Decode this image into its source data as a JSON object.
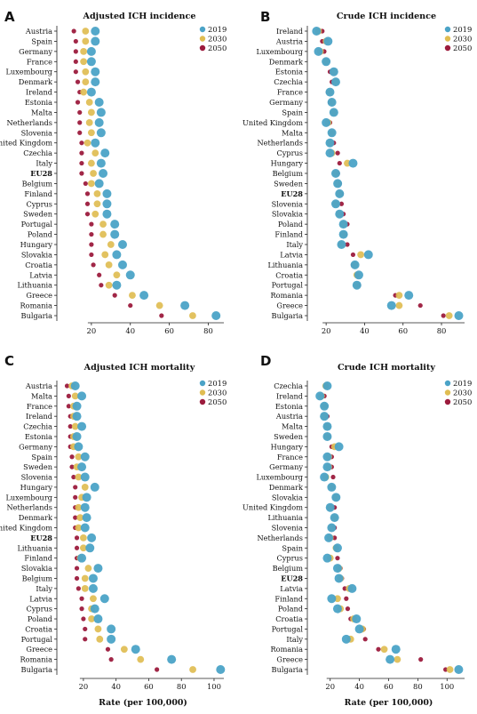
{
  "colors": {
    "2019": "#4ba3c7",
    "2030": "#e0bd52",
    "2050": "#9c1b3d"
  },
  "legend": [
    "2019",
    "2030",
    "2050"
  ],
  "bold_category": "EU28",
  "chart_data": [
    {
      "letter": "A",
      "type": "scatter",
      "title": "Adjusted ICH incidence",
      "xlabel": "",
      "xlim": [
        5,
        88
      ],
      "xticks": [
        20,
        40,
        60,
        80
      ],
      "categories": [
        "Austria",
        "Spain",
        "Germany",
        "France",
        "Luxembourg",
        "Denmark",
        "Ireland",
        "Estonia",
        "Malta",
        "Netherlands",
        "Slovenia",
        "United Kingdom",
        "Czechia",
        "Italy",
        "EU28",
        "Belgium",
        "Finland",
        "Cyprus",
        "Sweden",
        "Portugal",
        "Poland",
        "Hungary",
        "Slovakia",
        "Croatia",
        "Latvia",
        "Lithuania",
        "Greece",
        "Romania",
        "Bulgaria"
      ],
      "series": [
        {
          "name": "2019",
          "values": [
            22,
            22,
            20,
            20,
            22,
            22,
            20,
            24,
            25,
            24,
            25,
            22,
            27,
            25,
            26,
            24,
            28,
            28,
            28,
            32,
            32,
            36,
            33,
            36,
            40,
            33,
            47,
            68,
            84
          ]
        },
        {
          "name": "2030",
          "values": [
            17,
            17,
            16,
            16,
            17,
            17,
            16,
            19,
            20,
            19,
            20,
            18,
            22,
            20,
            21,
            20,
            23,
            23,
            22,
            26,
            26,
            30,
            27,
            29,
            33,
            29,
            41,
            55,
            72
          ]
        },
        {
          "name": "2050",
          "values": [
            11,
            12,
            12,
            12,
            12,
            13,
            14,
            13,
            14,
            14,
            14,
            15,
            15,
            15,
            15,
            17,
            18,
            18,
            18,
            20,
            20,
            20,
            20,
            21,
            24,
            25,
            32,
            40,
            56
          ]
        }
      ]
    },
    {
      "letter": "B",
      "type": "scatter",
      "title": "Crude ICH incidence",
      "xlabel": "",
      "xlim": [
        13,
        92
      ],
      "xticks": [
        20,
        40,
        60,
        80
      ],
      "categories": [
        "Ireland",
        "Austria",
        "Luxembourg",
        "Denmark",
        "Estonia",
        "Czechia",
        "France",
        "Germany",
        "Spain",
        "United Kingdom",
        "Malta",
        "Netherlands",
        "Cyprus",
        "Hungary",
        "Belgium",
        "Sweden",
        "EU28",
        "Slovenia",
        "Slovakia",
        "Poland",
        "Finland",
        "Italy",
        "Latvia",
        "Lithuania",
        "Croatia",
        "Portugal",
        "Romania",
        "Greece",
        "Bulgaria"
      ],
      "series": [
        {
          "name": "2019",
          "values": [
            15,
            21,
            16,
            20,
            24,
            25,
            22,
            23,
            24,
            20,
            23,
            22,
            22,
            34,
            25,
            26,
            27,
            25,
            27,
            29,
            29,
            28,
            42,
            35,
            37,
            36,
            63,
            54,
            89
          ]
        },
        {
          "name": "2030",
          "values": [
            16,
            20,
            17,
            20,
            24,
            25,
            22,
            23,
            24,
            21,
            23,
            22,
            23,
            31,
            25,
            26,
            27,
            25,
            27,
            29,
            29,
            28,
            38,
            35,
            36,
            36,
            58,
            58,
            84
          ]
        },
        {
          "name": "2050",
          "values": [
            18,
            18,
            19,
            20,
            22,
            23,
            21,
            22,
            24,
            22,
            23,
            24,
            26,
            27,
            26,
            27,
            28,
            28,
            29,
            31,
            30,
            31,
            34,
            34,
            36,
            37,
            56,
            69,
            81
          ]
        }
      ]
    },
    {
      "letter": "C",
      "type": "scatter",
      "title": "Adjusted ICH mortality",
      "xlabel": "Rate (per 100,000)",
      "xlim": [
        7,
        106
      ],
      "xticks": [
        20,
        40,
        60,
        80,
        100
      ],
      "categories": [
        "Austria",
        "Malta",
        "France",
        "Ireland",
        "Czechia",
        "Estonia",
        "Germany",
        "Spain",
        "Sweden",
        "Slovenia",
        "Hungary",
        "Luxembourg",
        "Netherlands",
        "Denmark",
        "United Kingdom",
        "EU28",
        "Lithuania",
        "Finland",
        "Slovakia",
        "Belgium",
        "Italy",
        "Latvia",
        "Cyprus",
        "Poland",
        "Croatia",
        "Portugal",
        "Greece",
        "Romania",
        "Bulgaria"
      ],
      "series": [
        {
          "name": "2019",
          "values": [
            15,
            19,
            16,
            16,
            19,
            16,
            17,
            21,
            19,
            21,
            27,
            22,
            21,
            22,
            21,
            25,
            24,
            19,
            29,
            26,
            26,
            33,
            27,
            29,
            37,
            37,
            52,
            74,
            104
          ]
        },
        {
          "name": "2030",
          "values": [
            13,
            15,
            14,
            14,
            15,
            14,
            14,
            17,
            16,
            17,
            21,
            19,
            17,
            18,
            17,
            20,
            20,
            18,
            23,
            21,
            21,
            26,
            25,
            25,
            29,
            30,
            45,
            55,
            87
          ]
        },
        {
          "name": "2050",
          "values": [
            10,
            11,
            11,
            12,
            12,
            12,
            12,
            13,
            13,
            14,
            15,
            15,
            15,
            15,
            15,
            16,
            16,
            16,
            16,
            16,
            17,
            19,
            19,
            20,
            21,
            21,
            35,
            37,
            65
          ]
        }
      ]
    },
    {
      "letter": "D",
      "type": "scatter",
      "title": "Crude ICH mortality",
      "xlabel": "Rate (per 100,000)",
      "xlim": [
        8,
        112
      ],
      "xticks": [
        20,
        40,
        60,
        80,
        100
      ],
      "categories": [
        "Czechia",
        "Ireland",
        "Estonia",
        "Austria",
        "Malta",
        "Sweden",
        "Hungary",
        "France",
        "Germany",
        "Luxembourg",
        "Denmark",
        "Slovakia",
        "United Kingdom",
        "Lithuania",
        "Slovenia",
        "Netherlands",
        "Spain",
        "Cyprus",
        "Belgium",
        "EU28",
        "Latvia",
        "Finland",
        "Poland",
        "Croatia",
        "Portugal",
        "Italy",
        "Romania",
        "Greece",
        "Bulgaria"
      ],
      "series": [
        {
          "name": "2019",
          "values": [
            18,
            13,
            16,
            16,
            18,
            18,
            26,
            18,
            18,
            16,
            21,
            24,
            20,
            23,
            21,
            19,
            25,
            18,
            25,
            26,
            35,
            21,
            25,
            38,
            40,
            31,
            65,
            61,
            108
          ]
        },
        {
          "name": "2030",
          "values": [
            17,
            14,
            16,
            16,
            18,
            18,
            23,
            19,
            19,
            17,
            21,
            24,
            20,
            23,
            21,
            20,
            24,
            20,
            26,
            27,
            33,
            25,
            27,
            36,
            42,
            34,
            57,
            66,
            102
          ]
        },
        {
          "name": "2050",
          "values": [
            17,
            16,
            17,
            18,
            18,
            19,
            21,
            21,
            21,
            22,
            22,
            23,
            23,
            23,
            23,
            23,
            24,
            25,
            27,
            28,
            30,
            31,
            32,
            34,
            43,
            44,
            53,
            82,
            99
          ]
        }
      ]
    }
  ]
}
